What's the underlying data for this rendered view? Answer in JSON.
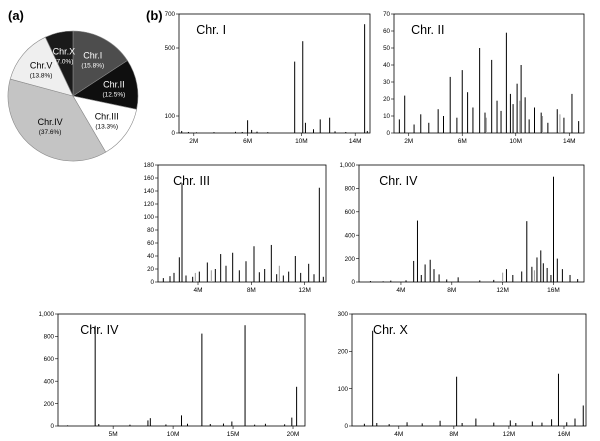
{
  "panel_labels": {
    "a": "(a)",
    "b": "(b)"
  },
  "colors": {
    "axis": "#000000",
    "bar": "#000000",
    "bar_grey": "#9a9a9a",
    "background": "#ffffff"
  },
  "chart_data": [
    {
      "type": "pie",
      "panel": "(a)",
      "start_angle_deg": 0,
      "slices": [
        {
          "label": "Chr.I",
          "pct_label": "(15.8%)",
          "value": 15.8,
          "color": "#4d4d4d",
          "text_color": "#ffffff"
        },
        {
          "label": "Chr.II",
          "pct_label": "(12.5%)",
          "value": 12.5,
          "color": "#0f0f0f",
          "text_color": "#ffffff"
        },
        {
          "label": "Chr.III",
          "pct_label": "(13.3%)",
          "value": 13.3,
          "color": "#ffffff",
          "text_color": "#000000"
        },
        {
          "label": "Chr.IV",
          "pct_label": "(37.6%)",
          "value": 37.6,
          "color": "#c4c4c4",
          "text_color": "#000000"
        },
        {
          "label": "Chr.V",
          "pct_label": "(13.8%)",
          "value": 13.8,
          "color": "#efefef",
          "text_color": "#000000"
        },
        {
          "label": "Chr.X",
          "pct_label": "(7.0%)",
          "value": 7.0,
          "color": "#1a1a1a",
          "text_color": "#ffffff"
        }
      ]
    },
    {
      "type": "bar",
      "title": "Chr. I",
      "ylim": [
        0,
        700
      ],
      "yticks": [
        0,
        100,
        500,
        700
      ],
      "xlim": [
        0.9,
        15.1
      ],
      "xticks": [
        2,
        6,
        10,
        14
      ],
      "xtick_labels": [
        "2M",
        "6M",
        "10M",
        "14M"
      ],
      "bars": [
        [
          1.1,
          12
        ],
        [
          1.6,
          6
        ],
        [
          2.2,
          4
        ],
        [
          3.5,
          5
        ],
        [
          5.1,
          7
        ],
        [
          5.6,
          6
        ],
        [
          6.0,
          75
        ],
        [
          6.3,
          18
        ],
        [
          6.7,
          8
        ],
        [
          7.5,
          5
        ],
        [
          9.5,
          420
        ],
        [
          10.1,
          540
        ],
        [
          10.3,
          60
        ],
        [
          10.9,
          22
        ],
        [
          11.4,
          80
        ],
        [
          12.1,
          90
        ],
        [
          12.5,
          10
        ],
        [
          13.3,
          6
        ],
        [
          14.7,
          640
        ],
        [
          14.9,
          12
        ]
      ]
    },
    {
      "type": "bar",
      "title": "Chr. II",
      "ylim": [
        0,
        70
      ],
      "yticks": [
        0,
        10,
        20,
        30,
        40,
        50,
        60,
        70
      ],
      "xlim": [
        0.9,
        15.1
      ],
      "xticks": [
        2,
        6,
        10,
        14
      ],
      "xtick_labels": [
        "2M",
        "6M",
        "10M",
        "14M"
      ],
      "bars": [
        [
          1.3,
          8
        ],
        [
          1.7,
          22
        ],
        [
          2.4,
          5
        ],
        [
          2.9,
          11
        ],
        [
          3.5,
          6
        ],
        [
          4.2,
          14
        ],
        [
          4.6,
          10
        ],
        [
          5.1,
          33
        ],
        [
          5.6,
          9
        ],
        [
          6.0,
          37
        ],
        [
          6.4,
          24
        ],
        [
          6.8,
          15
        ],
        [
          7.3,
          50
        ],
        [
          7.7,
          12
        ],
        [
          8.2,
          43
        ],
        [
          8.6,
          19
        ],
        [
          8.9,
          13
        ],
        [
          9.3,
          59
        ],
        [
          9.6,
          23
        ],
        [
          9.8,
          17
        ],
        [
          10.1,
          29
        ],
        [
          10.4,
          40
        ],
        [
          10.7,
          21
        ],
        [
          11.0,
          8
        ],
        [
          11.4,
          15
        ],
        [
          11.9,
          12
        ],
        [
          12.4,
          6
        ],
        [
          13.1,
          14
        ],
        [
          13.6,
          9
        ],
        [
          14.2,
          23
        ],
        [
          14.7,
          7
        ]
      ],
      "grey_bars": [
        [
          7.8,
          9
        ],
        [
          10.3,
          19
        ],
        [
          12.0,
          10
        ],
        [
          13.3,
          11
        ]
      ]
    },
    {
      "type": "bar",
      "title": "Chr. III",
      "ylim": [
        0,
        180
      ],
      "yticks": [
        0,
        20,
        40,
        60,
        80,
        100,
        120,
        140,
        160,
        180
      ],
      "xlim": [
        1.0,
        13.6
      ],
      "xticks": [
        4,
        8,
        12
      ],
      "xtick_labels": [
        "4M",
        "8M",
        "12M"
      ],
      "bars": [
        [
          1.4,
          6
        ],
        [
          1.9,
          9
        ],
        [
          2.2,
          14
        ],
        [
          2.6,
          38
        ],
        [
          2.8,
          152
        ],
        [
          3.1,
          10
        ],
        [
          3.6,
          8
        ],
        [
          4.1,
          16
        ],
        [
          4.7,
          30
        ],
        [
          5.3,
          20
        ],
        [
          5.7,
          43
        ],
        [
          6.1,
          25
        ],
        [
          6.6,
          45
        ],
        [
          7.1,
          18
        ],
        [
          7.6,
          32
        ],
        [
          8.2,
          55
        ],
        [
          8.6,
          15
        ],
        [
          9.0,
          20
        ],
        [
          9.5,
          57
        ],
        [
          9.9,
          12
        ],
        [
          10.4,
          10
        ],
        [
          10.8,
          16
        ],
        [
          11.3,
          40
        ],
        [
          11.7,
          14
        ],
        [
          12.3,
          28
        ],
        [
          12.7,
          12
        ],
        [
          13.1,
          145
        ],
        [
          13.4,
          8
        ]
      ],
      "grey_bars": [
        [
          3.8,
          14
        ],
        [
          5.0,
          18
        ],
        [
          10.1,
          25
        ]
      ]
    },
    {
      "type": "bar",
      "title": "Chr. IV",
      "ylim": [
        0,
        1000
      ],
      "yticks": [
        0,
        200,
        400,
        600,
        800,
        1000
      ],
      "xtick_fmt": "comma",
      "xlim": [
        0.7,
        18.4
      ],
      "xticks": [
        4,
        8,
        12,
        16
      ],
      "xtick_labels": [
        "4M",
        "8M",
        "12M",
        "16M"
      ],
      "bars": [
        [
          1.6,
          8
        ],
        [
          2.6,
          6
        ],
        [
          3.2,
          12
        ],
        [
          4.4,
          15
        ],
        [
          5.0,
          180
        ],
        [
          5.3,
          525
        ],
        [
          5.6,
          60
        ],
        [
          5.9,
          150
        ],
        [
          6.3,
          190
        ],
        [
          6.6,
          110
        ],
        [
          7.0,
          65
        ],
        [
          7.6,
          22
        ],
        [
          8.5,
          40
        ],
        [
          10.2,
          14
        ],
        [
          11.3,
          18
        ],
        [
          12.3,
          110
        ],
        [
          12.8,
          60
        ],
        [
          13.5,
          90
        ],
        [
          13.9,
          520
        ],
        [
          14.3,
          130
        ],
        [
          14.7,
          210
        ],
        [
          15.0,
          270
        ],
        [
          15.2,
          160
        ],
        [
          15.5,
          120
        ],
        [
          15.8,
          60
        ],
        [
          16.0,
          900
        ],
        [
          16.3,
          200
        ],
        [
          16.7,
          110
        ],
        [
          17.3,
          60
        ],
        [
          17.9,
          25
        ]
      ],
      "grey_bars": [
        [
          12.0,
          80
        ],
        [
          14.5,
          100
        ]
      ]
    },
    {
      "type": "bar",
      "title": "Chr. IV",
      "ylim": [
        0,
        1000
      ],
      "yticks": [
        0,
        200,
        400,
        600,
        800,
        1000
      ],
      "xtick_fmt": "comma",
      "xlim": [
        0.4,
        21.0
      ],
      "xticks": [
        5,
        10,
        15,
        20
      ],
      "xtick_labels": [
        "5M",
        "10M",
        "15M",
        "20M"
      ],
      "bars": [
        [
          1.2,
          6
        ],
        [
          3.5,
          895
        ],
        [
          3.8,
          18
        ],
        [
          6.4,
          12
        ],
        [
          7.9,
          50
        ],
        [
          8.1,
          70
        ],
        [
          9.4,
          14
        ],
        [
          10.7,
          95
        ],
        [
          11.2,
          20
        ],
        [
          12.4,
          825
        ],
        [
          13.1,
          18
        ],
        [
          14.2,
          22
        ],
        [
          14.9,
          40
        ],
        [
          16.0,
          900
        ],
        [
          16.8,
          12
        ],
        [
          17.7,
          20
        ],
        [
          19.3,
          15
        ],
        [
          19.9,
          75
        ],
        [
          20.3,
          350
        ]
      ]
    },
    {
      "type": "bar",
      "title": "Chr. X",
      "ylim": [
        0,
        300
      ],
      "yticks": [
        0,
        100,
        200,
        300
      ],
      "xlim": [
        0.6,
        17.6
      ],
      "xticks": [
        4,
        8,
        12,
        16
      ],
      "xtick_labels": [
        "4M",
        "8M",
        "12M",
        "16M"
      ],
      "bars": [
        [
          1.5,
          6
        ],
        [
          2.1,
          255
        ],
        [
          2.4,
          8
        ],
        [
          3.3,
          5
        ],
        [
          4.6,
          10
        ],
        [
          5.7,
          7
        ],
        [
          7.0,
          14
        ],
        [
          8.2,
          132
        ],
        [
          8.6,
          8
        ],
        [
          9.6,
          20
        ],
        [
          10.9,
          9
        ],
        [
          12.1,
          15
        ],
        [
          12.5,
          8
        ],
        [
          13.7,
          12
        ],
        [
          14.4,
          9
        ],
        [
          15.1,
          18
        ],
        [
          15.6,
          140
        ],
        [
          16.2,
          10
        ],
        [
          16.8,
          20
        ],
        [
          17.4,
          55
        ]
      ]
    }
  ]
}
